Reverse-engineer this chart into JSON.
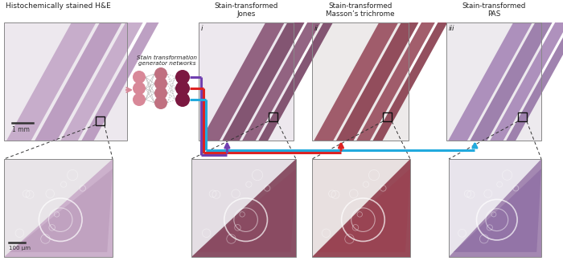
{
  "title_main": "Histochemically stained H&E",
  "title_i": "Stain-transformed\nJones",
  "title_ii": "Stain-transformed\nMasson’s trichrome",
  "title_iii": "Stain-transformed\nPAS",
  "nn_label": "Stain transformation\ngenerator networks",
  "scale_bar_top": "1 mm",
  "scale_bar_bottom": "100 μm",
  "roman_i": "i",
  "roman_ii": "ii",
  "roman_iii": "iii",
  "fig_bg": "#ffffff",
  "panel_bg": "#e8e6e8",
  "arrow_purple": "#7040b0",
  "arrow_red": "#dd2222",
  "arrow_cyan": "#22aadd",
  "nn_pink_light": "#d88898",
  "nn_pink_mid": "#c07080",
  "nn_dark": "#7b1840",
  "nn_connection": "#aaaaaa",
  "dash_color": "#333333",
  "label_color": "#222222",
  "tissue_he_bg": "#ede8ee",
  "tissue_he_strip": "#c4a8c8",
  "tissue_he_strip2": "#b898be",
  "tissue_jones_bg": "#ede8ee",
  "tissue_jones_strip": "#8a5878",
  "tissue_jones_strip2": "#7a4868",
  "tissue_masson_bg": "#edeaea",
  "tissue_masson_strip": "#9a5060",
  "tissue_masson_strip2": "#8a4050",
  "tissue_pas_bg": "#edeaee",
  "tissue_pas_strip": "#a888b8",
  "tissue_pas_strip2": "#9878a8",
  "zoom_he_bg": "#e8e4e8",
  "zoom_he_tissue": "#c8a8c8",
  "zoom_he_tissue2": "#b898b8",
  "zoom_jones_bg": "#e4dee4",
  "zoom_jones_tissue": "#7a3850",
  "zoom_jones_tissue2": "#8a4860",
  "zoom_masson_bg": "#e8e0e0",
  "zoom_masson_tissue": "#8a3040",
  "zoom_masson_tissue2": "#9a4050",
  "zoom_pas_bg": "#e8e4ec",
  "zoom_pas_tissue": "#9878a8",
  "zoom_pas_tissue2": "#8868a0",
  "scale_bar_color": "#333333"
}
